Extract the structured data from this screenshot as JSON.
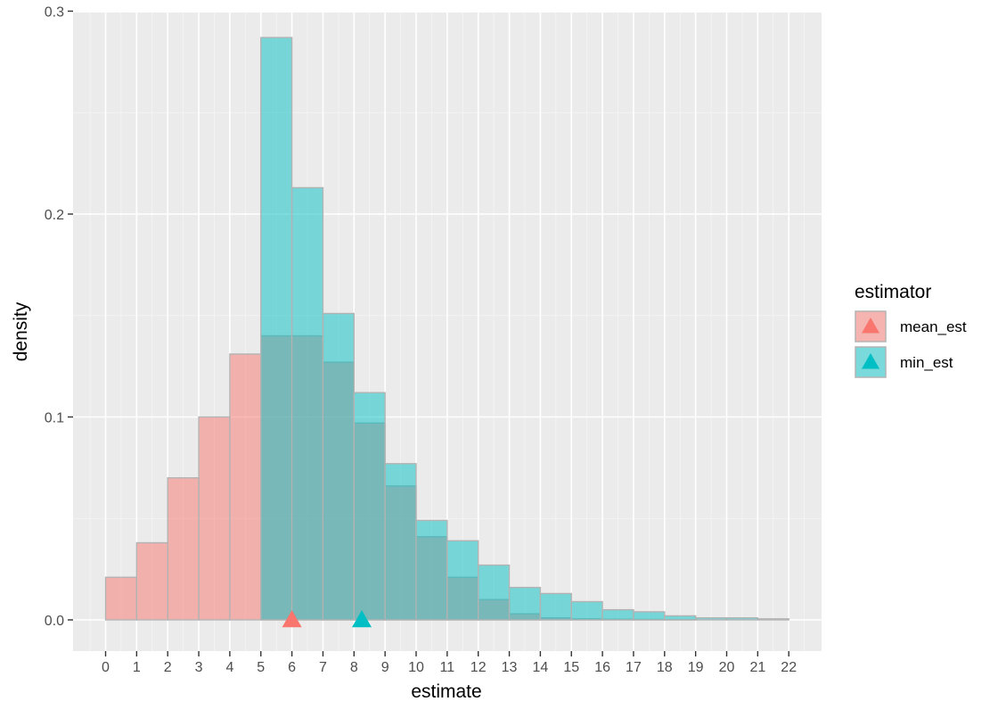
{
  "chart_data": {
    "type": "bar",
    "xlabel": "estimate",
    "ylabel": "density",
    "xlim": [
      -1,
      23
    ],
    "ylim": [
      0,
      0.3
    ],
    "x_ticks": [
      "0",
      "1",
      "2",
      "3",
      "4",
      "5",
      "6",
      "7",
      "8",
      "9",
      "10",
      "11",
      "12",
      "13",
      "14",
      "15",
      "16",
      "17",
      "18",
      "19",
      "20",
      "21",
      "22"
    ],
    "y_ticks": [
      "0.0",
      "0.1",
      "0.2",
      "0.3"
    ],
    "bin_width": 1,
    "series": [
      {
        "name": "mean_est",
        "color": "#F8766D",
        "bin_starts": [
          0,
          1,
          2,
          3,
          4,
          5,
          6,
          7,
          8,
          9,
          10,
          11,
          12,
          13,
          14,
          15,
          16,
          17,
          18,
          19,
          20,
          21
        ],
        "values": [
          0.021,
          0.038,
          0.07,
          0.1,
          0.131,
          0.14,
          0.14,
          0.127,
          0.097,
          0.066,
          0.041,
          0.021,
          0.01,
          0.003,
          0.001,
          0.0005,
          0.0003,
          0.0002,
          0.0001,
          0,
          0,
          0
        ]
      },
      {
        "name": "min_est",
        "color": "#00BFC4",
        "bin_starts": [
          5,
          6,
          7,
          8,
          9,
          10,
          11,
          12,
          13,
          14,
          15,
          16,
          17,
          18,
          19,
          20,
          21
        ],
        "values": [
          0.287,
          0.213,
          0.151,
          0.112,
          0.077,
          0.049,
          0.039,
          0.027,
          0.016,
          0.013,
          0.009,
          0.005,
          0.004,
          0.002,
          0.001,
          0.001,
          0.0005
        ]
      }
    ],
    "markers": [
      {
        "series": "mean_est",
        "x": 6.0,
        "color": "#F8766D"
      },
      {
        "series": "min_est",
        "x": 8.25,
        "color": "#00BFC4"
      }
    ],
    "legend": {
      "title": "estimator",
      "position": "right",
      "items": [
        {
          "label": "mean_est",
          "color": "#F8766D"
        },
        {
          "label": "min_est",
          "color": "#00BFC4"
        }
      ]
    },
    "grid": true,
    "panel_background": "#EBEBEB"
  }
}
